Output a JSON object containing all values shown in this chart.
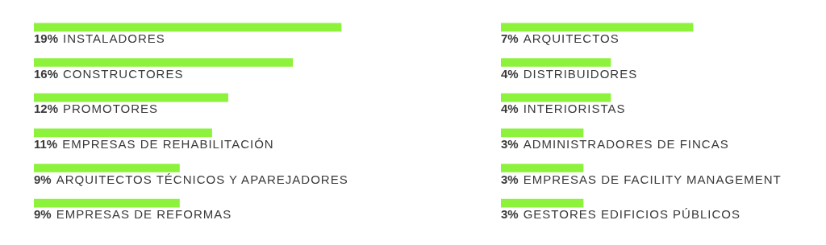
{
  "chart_data": [
    {
      "type": "bar",
      "orientation": "horizontal",
      "color": "#8df23c",
      "categories": [
        "INSTALADORES",
        "CONSTRUCTORES",
        "PROMOTORES",
        "EMPRESAS DE REHABILITACIÓN",
        "ARQUITECTOS TÉCNICOS Y APAREJADORES",
        "EMPRESAS DE REFORMAS"
      ],
      "values": [
        19,
        16,
        12,
        11,
        9,
        9
      ],
      "value_labels": [
        "19%",
        "16%",
        "12%",
        "11%",
        "9%",
        "9%"
      ]
    },
    {
      "type": "bar",
      "orientation": "horizontal",
      "color": "#8df23c",
      "categories": [
        "ARQUITECTOS",
        "DISTRIBUIDORES",
        "INTERIORISTAS",
        "ADMINISTRADORES DE FINCAS",
        "EMPRESAS DE FACILITY MANAGEMENT",
        "GESTORES EDIFICIOS PÚBLICOS"
      ],
      "values": [
        7,
        4,
        4,
        3,
        3,
        3
      ],
      "value_labels": [
        "7%",
        "4%",
        "4%",
        "3%",
        "3%",
        "3%"
      ]
    }
  ]
}
